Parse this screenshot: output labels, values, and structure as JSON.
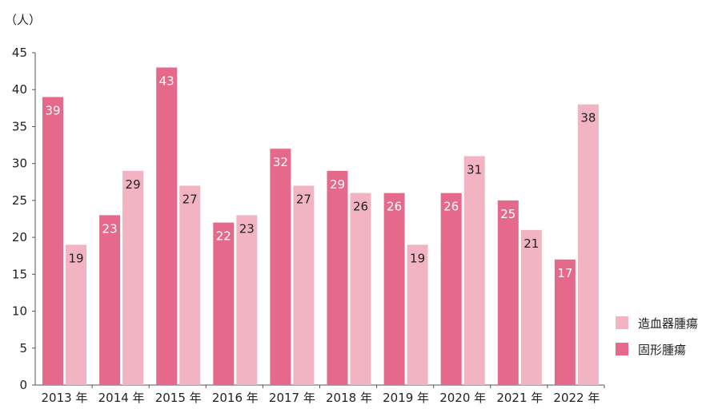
{
  "chart_data": {
    "type": "bar",
    "unit_label": "（人）",
    "categories": [
      "2013 年",
      "2014 年",
      "2015 年",
      "2016 年",
      "2017 年",
      "2018 年",
      "2019 年",
      "2020 年",
      "2021 年",
      "2022 年"
    ],
    "series": [
      {
        "name": "固形腫瘍",
        "color": "#e5698a",
        "label_color": "#ffffff",
        "values": [
          39,
          23,
          43,
          22,
          32,
          29,
          26,
          26,
          25,
          17
        ]
      },
      {
        "name": "造血器腫瘍",
        "color": "#f2b4c3",
        "label_color": "#222222",
        "values": [
          19,
          29,
          27,
          23,
          27,
          26,
          19,
          31,
          21,
          38
        ]
      }
    ],
    "yticks": [
      "0",
      "5",
      "10",
      "15",
      "20",
      "25",
      "30",
      "35",
      "40",
      "45"
    ],
    "ylim": [
      0,
      45
    ],
    "grid": false,
    "legend_position": "right",
    "legend_order": [
      "造血器腫瘍",
      "固形腫瘍"
    ]
  }
}
